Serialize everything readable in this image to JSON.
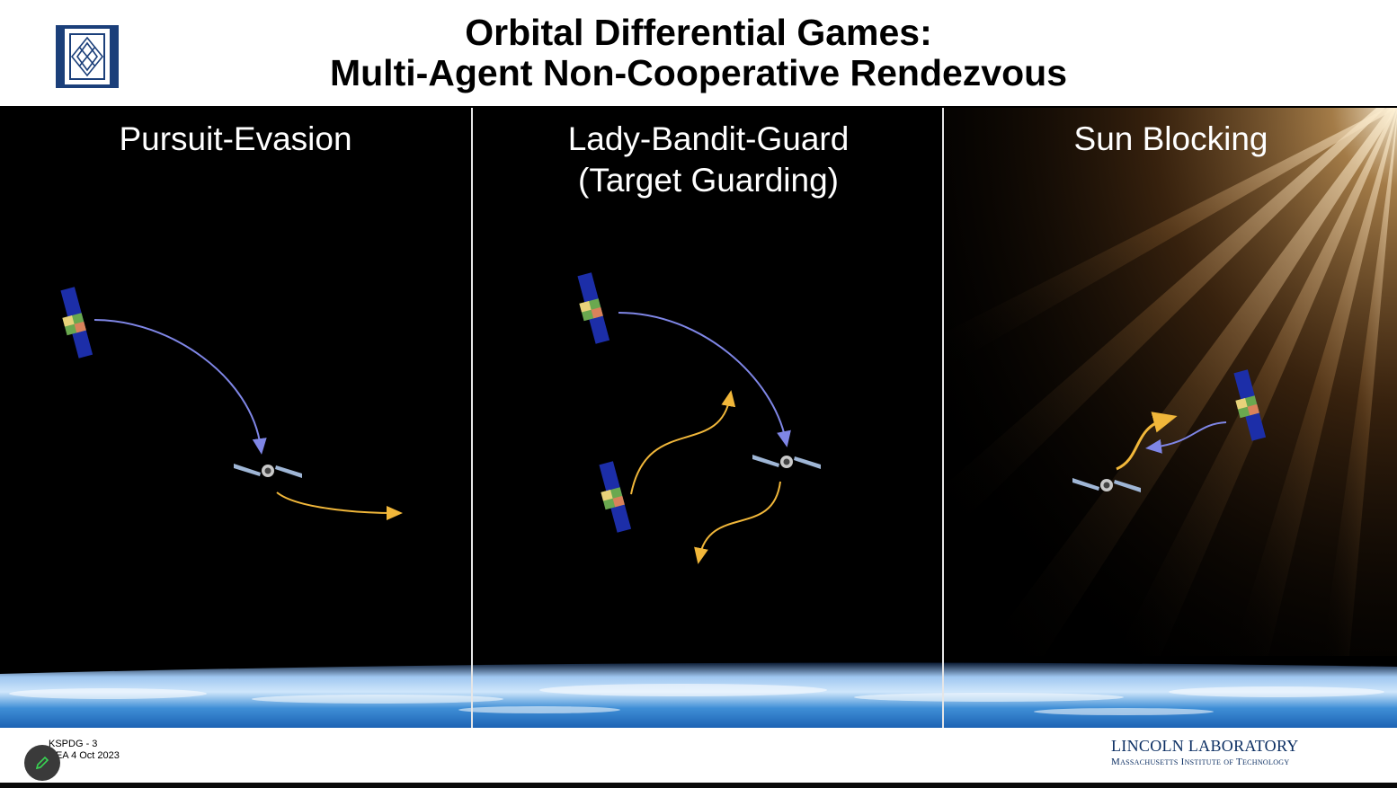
{
  "slide": {
    "title_line1": "Orbital Differential Games:",
    "title_line2": "Multi-Agent Non-Cooperative Rendezvous",
    "panels": [
      {
        "title_line1": "Pursuit-Evasion",
        "title_line2": ""
      },
      {
        "title_line1": "Lady-Bandit-Guard",
        "title_line2": "(Target Guarding)"
      },
      {
        "title_line1": "Sun Blocking",
        "title_line2": ""
      }
    ],
    "footnote_line1": "KSPDG - 3",
    "footnote_line2": "REA 4 Oct 2023",
    "org_name": "LINCOLN LABORATORY",
    "org_sub": "Massachusetts Institute of Technology"
  },
  "icons": {
    "logo": "lincoln-lab-logo-icon",
    "edit": "pencil-icon",
    "satellite_pursuer": "satellite-solar-panel-icon",
    "satellite_evader": "satellite-icon"
  },
  "colors": {
    "pursuit_arrow": "#7f86e6",
    "evade_arrow": "#f1b73a",
    "brand": "#0c2f63",
    "panel_blue": "#1c2ea8"
  }
}
